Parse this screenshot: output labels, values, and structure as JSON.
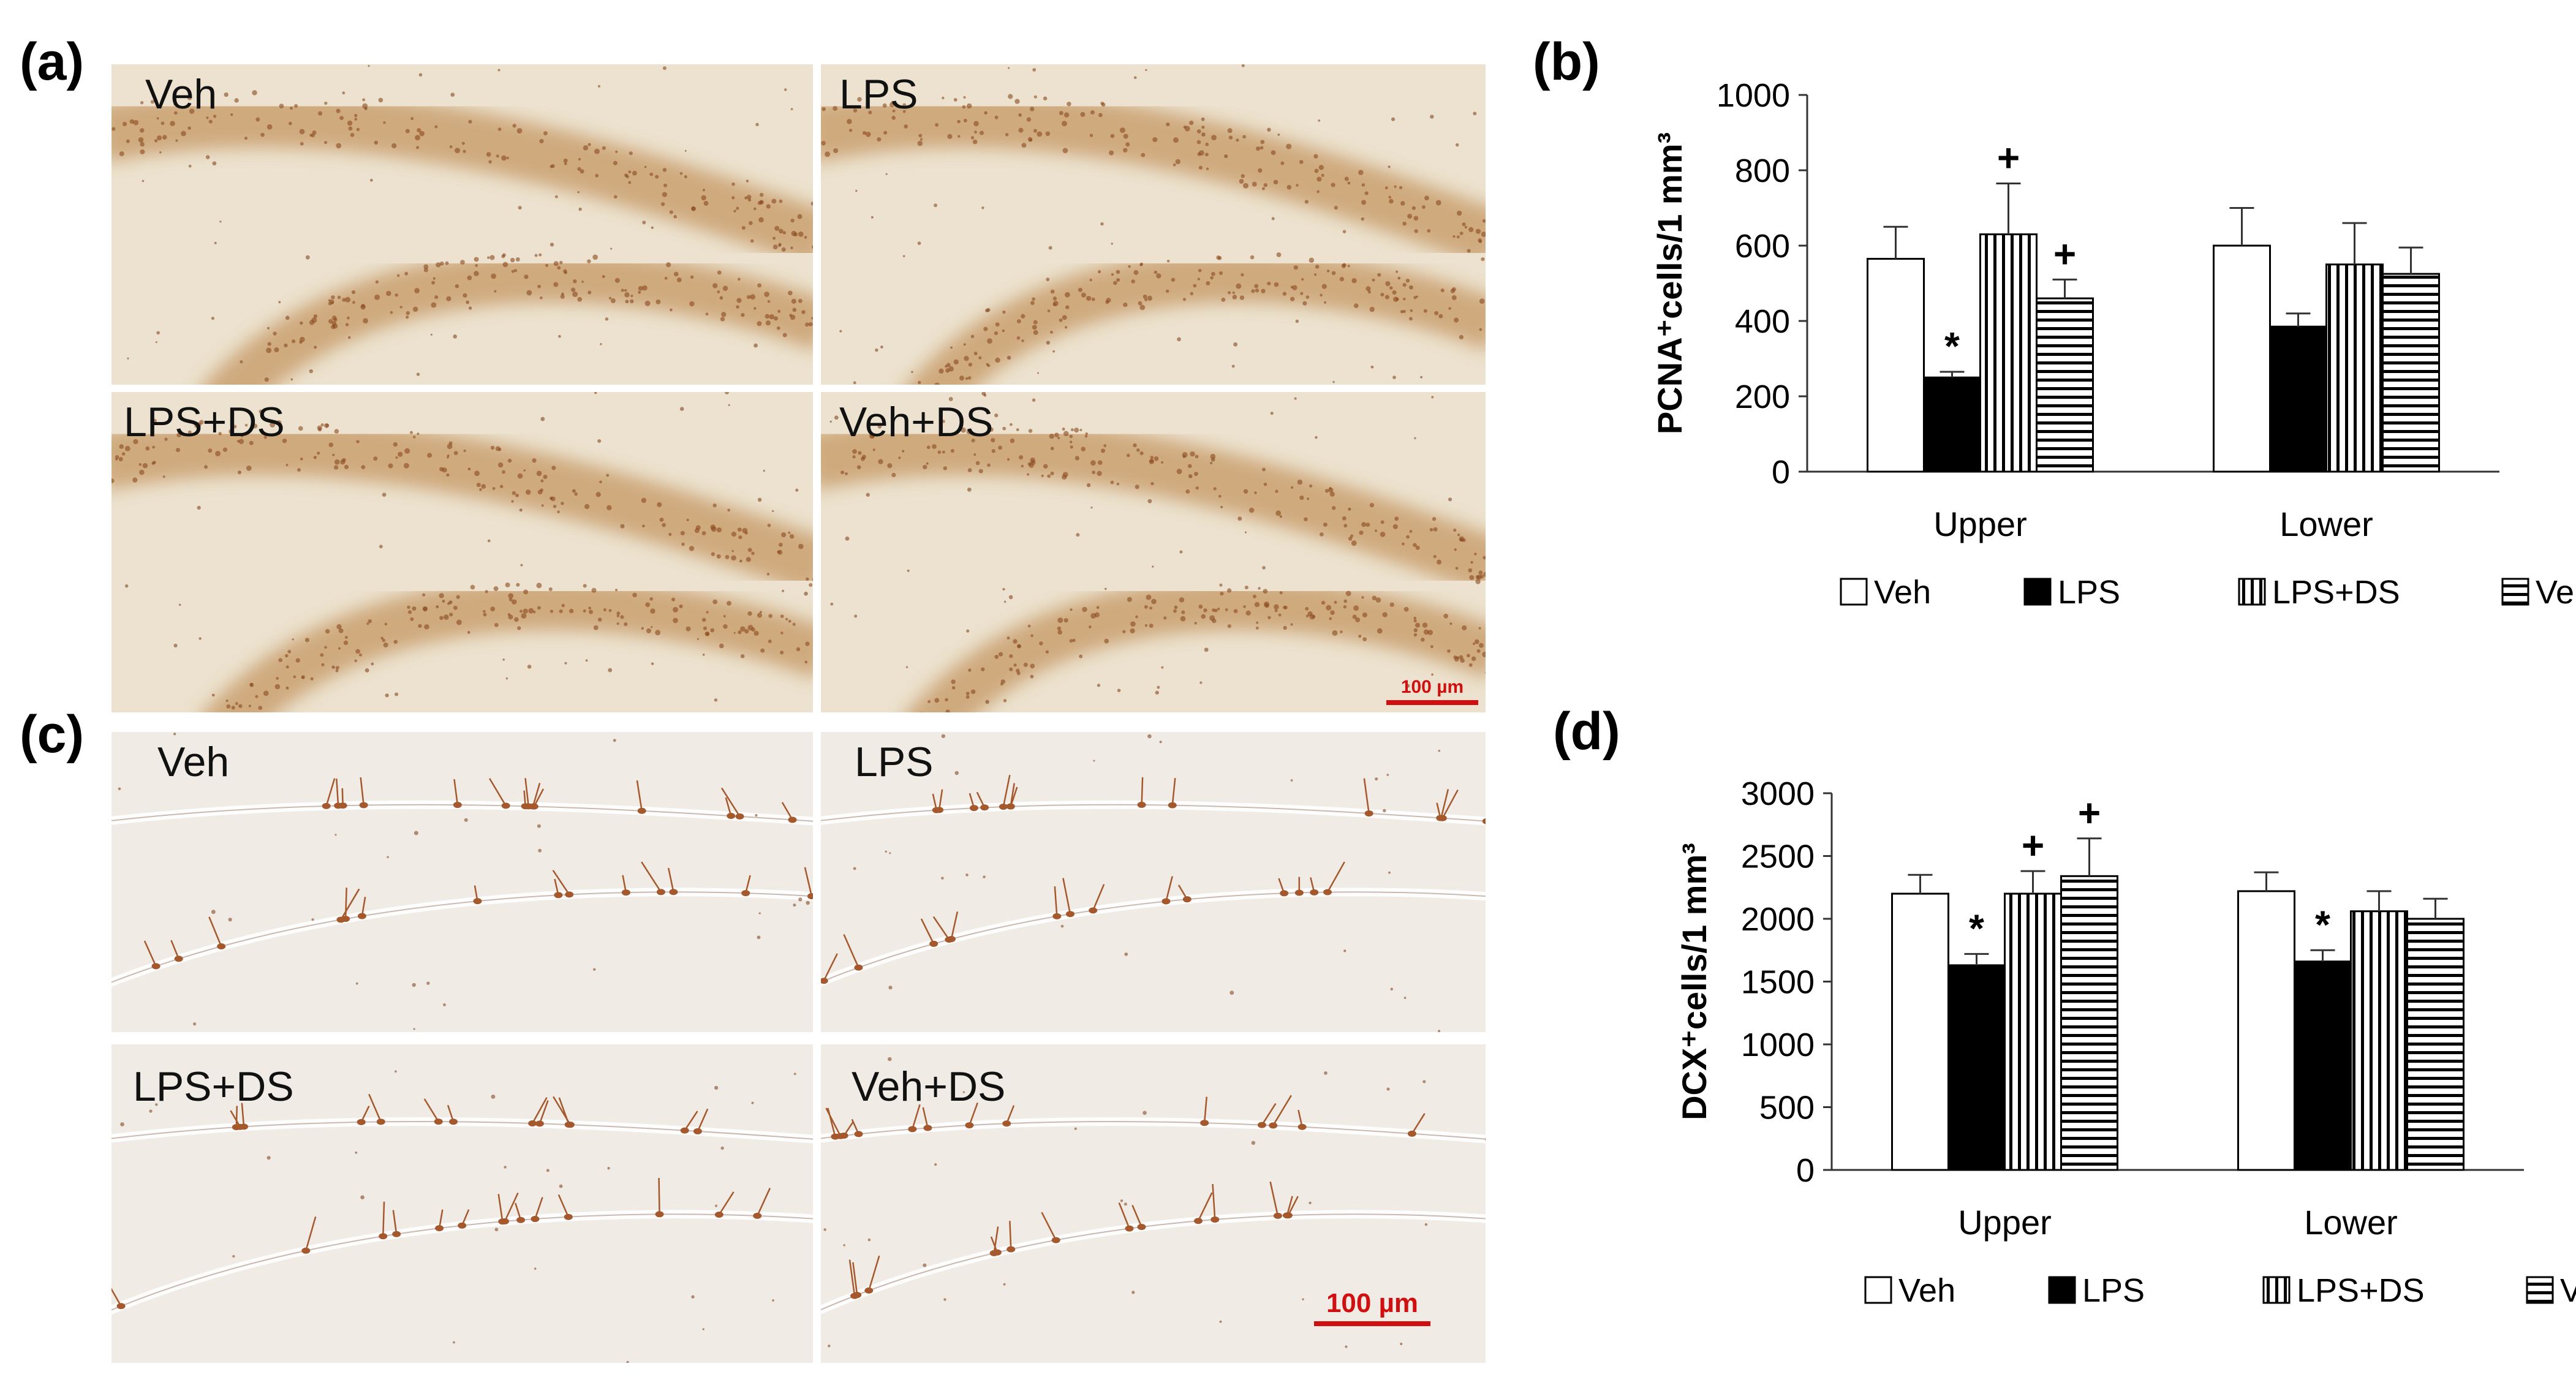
{
  "panels": {
    "a": {
      "label": "(a)",
      "images": [
        {
          "label": "Veh"
        },
        {
          "label": "LPS"
        },
        {
          "label": "LPS+DS"
        },
        {
          "label": "Veh+DS"
        }
      ],
      "scale_bar": "100 µm",
      "colors": {
        "background": "#ece2cf",
        "stain": "#b77c3c"
      }
    },
    "b": {
      "label": "(b)"
    },
    "c": {
      "label": "(c)",
      "images": [
        {
          "label": "Veh"
        },
        {
          "label": "LPS"
        },
        {
          "label": "LPS+DS"
        },
        {
          "label": "Veh+DS"
        }
      ],
      "scale_bar": "100 µm",
      "colors": {
        "background": "#f0ebe4",
        "stain": "#a5582c"
      }
    },
    "d": {
      "label": "(d)"
    }
  },
  "chart_data": [
    {
      "type": "bar",
      "panel": "b",
      "ylabel": "PCNA⁺cells/1 mm³",
      "categories": [
        "Upper",
        "Lower"
      ],
      "ylim": [
        0,
        1000
      ],
      "yticks": [
        "0",
        "200",
        "400",
        "600",
        "800",
        "1000"
      ],
      "legend_position": "bottom",
      "series": [
        {
          "name": "Veh",
          "pattern": "open",
          "values": [
            565,
            600
          ],
          "errors": [
            85,
            100
          ]
        },
        {
          "name": "LPS",
          "pattern": "solid",
          "values": [
            250,
            385
          ],
          "errors": [
            15,
            35
          ]
        },
        {
          "name": "LPS+DS",
          "pattern": "vertical-lines",
          "values": [
            630,
            550
          ],
          "errors": [
            135,
            110
          ]
        },
        {
          "name": "Veh+DS",
          "pattern": "horizontal-lines",
          "values": [
            460,
            525
          ],
          "errors": [
            50,
            70
          ]
        }
      ],
      "annotations": [
        {
          "text": "*",
          "category": "Upper",
          "series": "LPS"
        },
        {
          "text": "+",
          "category": "Upper",
          "series": "LPS+DS"
        },
        {
          "text": "+",
          "category": "Upper",
          "series": "Veh+DS"
        }
      ]
    },
    {
      "type": "bar",
      "panel": "d",
      "ylabel": "DCX⁺cells/1 mm³",
      "categories": [
        "Upper",
        "Lower"
      ],
      "ylim": [
        0,
        3000
      ],
      "yticks": [
        "0",
        "500",
        "1000",
        "1500",
        "2000",
        "2500",
        "3000"
      ],
      "legend_position": "bottom",
      "series": [
        {
          "name": "Veh",
          "pattern": "open",
          "values": [
            2200,
            2220
          ],
          "errors": [
            150,
            150
          ]
        },
        {
          "name": "LPS",
          "pattern": "solid",
          "values": [
            1630,
            1660
          ],
          "errors": [
            90,
            90
          ]
        },
        {
          "name": "LPS+DS",
          "pattern": "vertical-lines",
          "values": [
            2200,
            2060
          ],
          "errors": [
            180,
            160
          ]
        },
        {
          "name": "Veh+DS",
          "pattern": "horizontal-lines",
          "values": [
            2340,
            2000
          ],
          "errors": [
            300,
            160
          ]
        }
      ],
      "annotations": [
        {
          "text": "*",
          "category": "Upper",
          "series": "LPS"
        },
        {
          "text": "+",
          "category": "Upper",
          "series": "LPS+DS"
        },
        {
          "text": "+",
          "category": "Upper",
          "series": "Veh+DS"
        },
        {
          "text": "*",
          "category": "Lower",
          "series": "LPS"
        }
      ]
    }
  ]
}
